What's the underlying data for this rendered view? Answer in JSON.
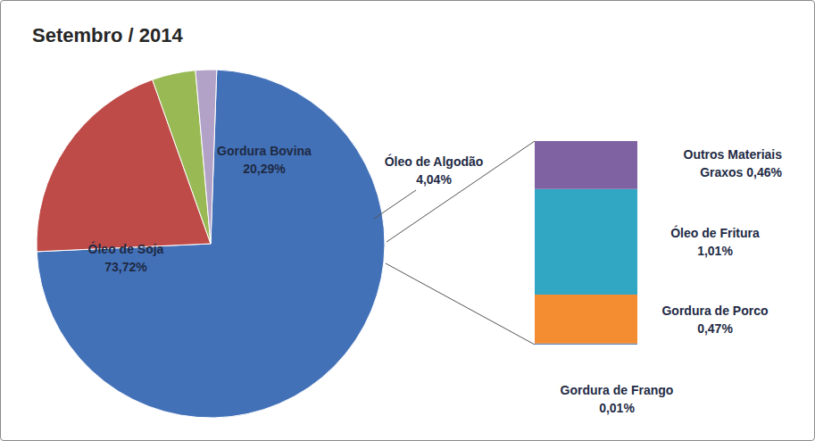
{
  "chart_data": [
    {
      "type": "pie",
      "title": "Setembro / 2014",
      "categories": [
        "Óleo de Soja",
        "Gordura Bovina",
        "Óleo de Algodão",
        null
      ],
      "values": [
        73.72,
        20.29,
        4.04,
        1.95
      ],
      "value_labels": [
        "73,72%",
        "20,29%",
        "4,04%",
        null
      ],
      "colors": [
        "#4371b8",
        "#be4b48",
        "#98b954",
        "#b3a2c7"
      ],
      "data_labels": true
    },
    {
      "type": "bar",
      "stacked": true,
      "categories": [
        null
      ],
      "series": [
        {
          "name": "Outros Materiais Graxos",
          "color": "#7f62a1",
          "values": [
            0.46
          ],
          "value_labels": [
            "0,46%"
          ]
        },
        {
          "name": "Óleo de Fritura",
          "color": "#32a7c4",
          "values": [
            1.01
          ],
          "value_labels": [
            "1,01%"
          ]
        },
        {
          "name": "Gordura de Porco",
          "color": "#f48c32",
          "values": [
            0.47
          ],
          "value_labels": [
            "0,47%"
          ]
        },
        {
          "name": "Gordura de Frango",
          "color": "#4f81bd",
          "values": [
            0.01
          ],
          "value_labels": [
            "0,01%"
          ]
        }
      ],
      "ylim": [
        0,
        1.95
      ],
      "tick_labels": false,
      "data_labels": true
    }
  ]
}
